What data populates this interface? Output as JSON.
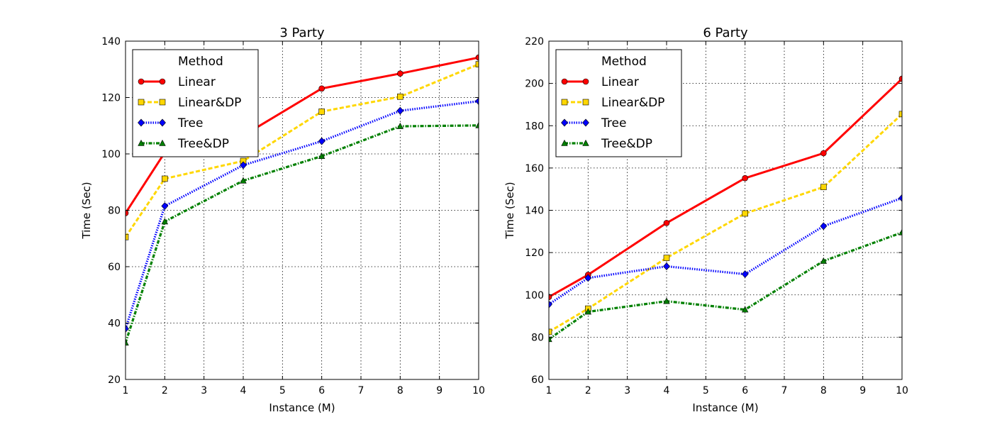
{
  "chart_data": [
    {
      "type": "line",
      "title": "3 Party",
      "xlabel": "Instance (M)",
      "ylabel": "Time (Sec)",
      "xlim": [
        1,
        10
      ],
      "ylim": [
        20,
        140
      ],
      "xticks": [
        1,
        2,
        3,
        4,
        5,
        6,
        7,
        8,
        9,
        10
      ],
      "yticks": [
        20,
        40,
        60,
        80,
        100,
        120,
        140
      ],
      "grid": true,
      "legend": {
        "title": "Method",
        "placement": "top-left"
      },
      "x": [
        1,
        2,
        4,
        6,
        8,
        10
      ],
      "series": [
        {
          "name": "Linear",
          "values": [
            79,
            100.5,
            106.5,
            123.2,
            128.5,
            134.2
          ],
          "color": "#ff0000",
          "marker": "circle",
          "linestyle": "solid"
        },
        {
          "name": "Linear&DP",
          "values": [
            70.5,
            91.2,
            97.5,
            115,
            120.3,
            131.8
          ],
          "color": "#ffd700",
          "marker": "square",
          "linestyle": "dashed"
        },
        {
          "name": "Tree",
          "values": [
            38,
            81.5,
            96,
            104.5,
            115.3,
            118.7
          ],
          "color": "#0000ff",
          "marker": "diamond",
          "linestyle": "dotted"
        },
        {
          "name": "Tree&DP",
          "values": [
            33,
            76,
            90.5,
            99.2,
            109.8,
            110.1
          ],
          "color": "#008000",
          "marker": "triangle",
          "linestyle": "dashdot"
        }
      ]
    },
    {
      "type": "line",
      "title": "6 Party",
      "xlabel": "Instance (M)",
      "ylabel": "Time (Sec)",
      "xlim": [
        1,
        10
      ],
      "ylim": [
        60,
        220
      ],
      "xticks": [
        1,
        2,
        3,
        4,
        5,
        6,
        7,
        8,
        9,
        10
      ],
      "yticks": [
        60,
        80,
        100,
        120,
        140,
        160,
        180,
        200,
        220
      ],
      "grid": true,
      "legend": {
        "title": "Method",
        "placement": "top-left"
      },
      "x": [
        1,
        2,
        4,
        6,
        8,
        10
      ],
      "series": [
        {
          "name": "Linear",
          "values": [
            99,
            109.5,
            134,
            155.2,
            167,
            202.2
          ],
          "color": "#ff0000",
          "marker": "circle",
          "linestyle": "solid"
        },
        {
          "name": "Linear&DP",
          "values": [
            82.5,
            93.5,
            117.5,
            138.5,
            151,
            185.5
          ],
          "color": "#ffd700",
          "marker": "square",
          "linestyle": "dashed"
        },
        {
          "name": "Tree",
          "values": [
            95.5,
            108,
            113.5,
            109.8,
            132.5,
            145.8
          ],
          "color": "#0000ff",
          "marker": "diamond",
          "linestyle": "dotted"
        },
        {
          "name": "Tree&DP",
          "values": [
            79,
            92,
            97,
            93,
            116,
            129.5
          ],
          "color": "#008000",
          "marker": "triangle",
          "linestyle": "dashdot"
        }
      ]
    }
  ]
}
